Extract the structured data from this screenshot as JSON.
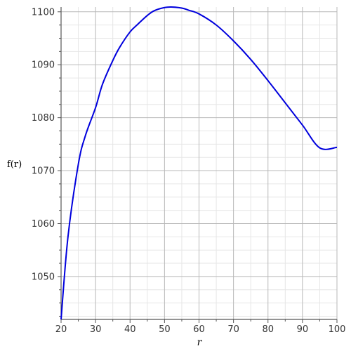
{
  "chart_data": {
    "type": "line",
    "xlabel": "r",
    "ylabel": "f(r)",
    "xlim": [
      20,
      100
    ],
    "ylim": [
      1041.9,
      1100.9
    ],
    "x_ticks": [
      20,
      30,
      40,
      50,
      60,
      70,
      80,
      90,
      100
    ],
    "x_tick_labels": [
      "20",
      "30",
      "40",
      "50",
      "60",
      "70",
      "80",
      "90",
      "100"
    ],
    "y_ticks": [
      1050,
      1060,
      1070,
      1080,
      1090,
      1100
    ],
    "y_tick_labels": [
      "1050",
      "1060",
      "1070",
      "1080",
      "1090",
      "1100"
    ],
    "grid": true,
    "series": [
      {
        "color": "#0000dd",
        "x": [
          20,
          22,
          25,
          27,
          30,
          32,
          35,
          37,
          40,
          42,
          45,
          47,
          50,
          52,
          55,
          57,
          60,
          65,
          70,
          75,
          80,
          85,
          90,
          95,
          100
        ],
        "y": [
          1041.9,
          1057.5,
          1071.2,
          1076.5,
          1081.9,
          1086.3,
          1090.8,
          1093.3,
          1096.2,
          1097.5,
          1099.3,
          1100.2,
          1100.8,
          1100.9,
          1100.7,
          1100.3,
          1099.6,
          1097.5,
          1094.5,
          1091.0,
          1087.0,
          1082.8,
          1078.6,
          1074.3,
          1074.4
        ]
      }
    ]
  }
}
